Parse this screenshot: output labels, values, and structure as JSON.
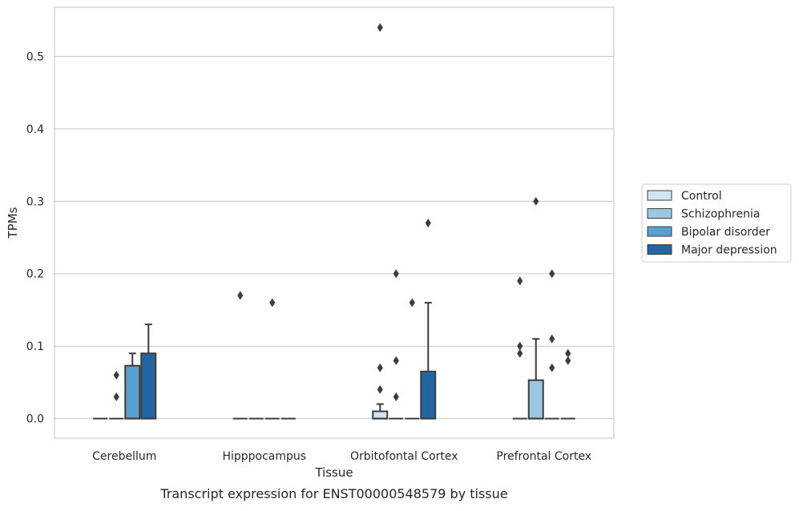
{
  "chart_data": {
    "type": "box",
    "caption": "Transcript expression for ENST00000548579 by tissue",
    "xlabel": "Tissue",
    "ylabel": "TPMs",
    "ylim": [
      -0.027,
      0.568
    ],
    "yticks": [
      0.0,
      0.1,
      0.2,
      0.3,
      0.4,
      0.5
    ],
    "ytick_labels": [
      "0.0",
      "0.1",
      "0.2",
      "0.3",
      "0.4",
      "0.5"
    ],
    "grid": "horizontal",
    "legend_position": "right",
    "categories": [
      "Cerebellum",
      "Hipppocampus",
      "Orbitofontal Cortex",
      "Prefrontal Cortex"
    ],
    "series": [
      {
        "name": "Control",
        "color": "#d3e4f3",
        "boxes": [
          {
            "q1": 0,
            "median": 0,
            "q3": 0,
            "whisker_low": 0,
            "whisker_high": 0,
            "outliers": []
          },
          {
            "q1": 0,
            "median": 0,
            "q3": 0,
            "whisker_low": 0,
            "whisker_high": 0,
            "outliers": [
              0.17
            ]
          },
          {
            "q1": 0,
            "median": 0,
            "q3": 0.01,
            "whisker_low": 0,
            "whisker_high": 0.02,
            "outliers": [
              0.54,
              0.07,
              0.04
            ]
          },
          {
            "q1": 0,
            "median": 0,
            "q3": 0,
            "whisker_low": 0,
            "whisker_high": 0,
            "outliers": [
              0.19,
              0.1,
              0.09
            ]
          }
        ]
      },
      {
        "name": "Schizophrenia",
        "color": "#9ac8e0",
        "boxes": [
          {
            "q1": 0,
            "median": 0,
            "q3": 0,
            "whisker_low": 0,
            "whisker_high": 0,
            "outliers": [
              0.06,
              0.03
            ]
          },
          {
            "q1": 0,
            "median": 0,
            "q3": 0,
            "whisker_low": 0,
            "whisker_high": 0,
            "outliers": []
          },
          {
            "q1": 0,
            "median": 0,
            "q3": 0,
            "whisker_low": 0,
            "whisker_high": 0,
            "outliers": [
              0.2,
              0.08,
              0.03
            ]
          },
          {
            "q1": 0,
            "median": 0,
            "q3": 0.053,
            "whisker_low": 0,
            "whisker_high": 0.11,
            "outliers": [
              0.3
            ]
          }
        ]
      },
      {
        "name": "Bipolar disorder",
        "color": "#5a9fcd",
        "boxes": [
          {
            "q1": 0,
            "median": 0,
            "q3": 0.073,
            "whisker_low": 0,
            "whisker_high": 0.09,
            "outliers": []
          },
          {
            "q1": 0,
            "median": 0,
            "q3": 0,
            "whisker_low": 0,
            "whisker_high": 0,
            "outliers": [
              0.16
            ]
          },
          {
            "q1": 0,
            "median": 0,
            "q3": 0,
            "whisker_low": 0,
            "whisker_high": 0,
            "outliers": [
              0.16
            ]
          },
          {
            "q1": 0,
            "median": 0,
            "q3": 0,
            "whisker_low": 0,
            "whisker_high": 0,
            "outliers": [
              0.2,
              0.11,
              0.07
            ]
          }
        ]
      },
      {
        "name": "Major depression",
        "color": "#2365a3",
        "boxes": [
          {
            "q1": 0,
            "median": 0,
            "q3": 0.09,
            "whisker_low": 0,
            "whisker_high": 0.13,
            "outliers": []
          },
          {
            "q1": 0,
            "median": 0,
            "q3": 0,
            "whisker_low": 0,
            "whisker_high": 0,
            "outliers": []
          },
          {
            "q1": 0,
            "median": 0,
            "q3": 0.065,
            "whisker_low": 0,
            "whisker_high": 0.16,
            "outliers": [
              0.27
            ]
          },
          {
            "q1": 0,
            "median": 0,
            "q3": 0,
            "whisker_low": 0,
            "whisker_high": 0,
            "outliers": [
              0.09,
              0.08
            ]
          }
        ]
      }
    ]
  }
}
